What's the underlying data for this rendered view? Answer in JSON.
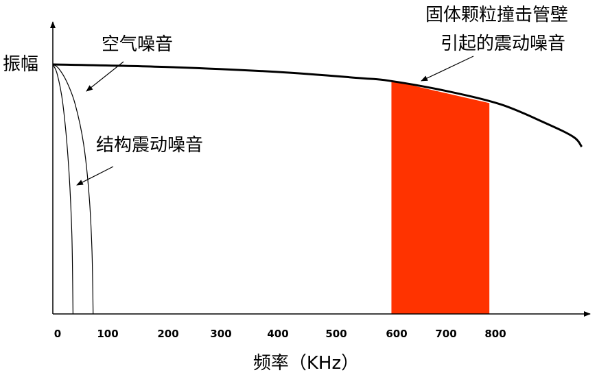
{
  "chart_data": {
    "type": "line",
    "title": "",
    "xlabel": "频率（KHz）",
    "ylabel": "振幅",
    "xlim": [
      0,
      960
    ],
    "ylim": [
      0,
      1
    ],
    "x_ticks": [
      0,
      100,
      200,
      300,
      400,
      500,
      600,
      700,
      800
    ],
    "x_tick_labels": [
      "0",
      "100",
      "200",
      "300",
      "400",
      "500",
      "600",
      "700",
      "800"
    ],
    "series": [
      {
        "name": "空气噪音",
        "style": "thin",
        "x": [
          0,
          10,
          25,
          40,
          55,
          65,
          70,
          72
        ],
        "y": [
          1.0,
          0.985,
          0.93,
          0.84,
          0.68,
          0.47,
          0.25,
          0.0
        ]
      },
      {
        "name": "结构震动噪音",
        "style": "thin",
        "x": [
          0,
          8,
          18,
          28,
          34,
          36
        ],
        "y": [
          1.0,
          0.96,
          0.84,
          0.6,
          0.32,
          0.0
        ]
      },
      {
        "name": "固体颗粒撞击管壁引起的震动噪音",
        "style": "thick",
        "x": [
          0,
          200,
          400,
          550,
          600,
          700,
          800,
          880,
          930,
          945
        ],
        "y": [
          1.0,
          0.99,
          0.97,
          0.945,
          0.935,
          0.895,
          0.84,
          0.765,
          0.71,
          0.67
        ]
      }
    ],
    "highlight_region": {
      "x_range": [
        605,
        780
      ],
      "y_top_left": 0.935,
      "y_top_right": 0.845,
      "color": "#ff3300"
    },
    "annotations": [
      {
        "text": "空气噪音",
        "points_to_series": "空气噪音"
      },
      {
        "text": "结构震动噪音",
        "points_to_series": "结构震动噪音"
      },
      {
        "text": "固体颗粒撞击管壁",
        "points_to_series": "固体颗粒撞击管壁引起的震动噪音"
      },
      {
        "text": "引起的震动噪音",
        "points_to_series": "固体颗粒撞击管壁引起的震动噪音"
      }
    ]
  }
}
